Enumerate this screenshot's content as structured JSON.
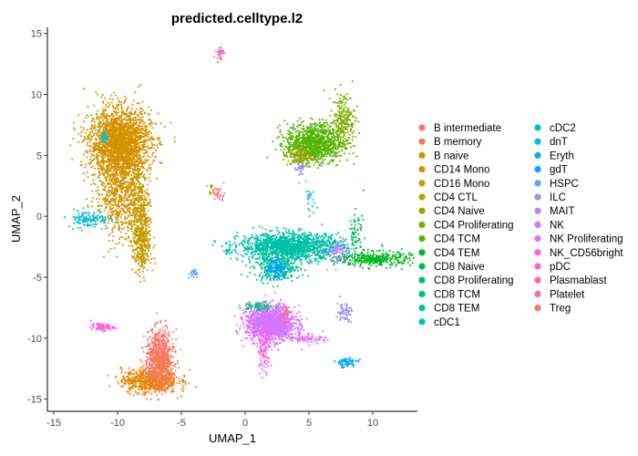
{
  "chart_data": {
    "type": "scatter",
    "title": "predicted.celltype.l2",
    "xlabel": "UMAP_1",
    "ylabel": "UMAP_2",
    "xlim": [
      -15.5,
      13.5
    ],
    "ylim": [
      -16,
      15.5
    ],
    "xticks": [
      -15,
      -10,
      -5,
      0,
      5,
      10
    ],
    "yticks": [
      -15,
      -10,
      -5,
      0,
      5,
      10,
      15
    ],
    "grid": false,
    "legend_position": "right",
    "legend": [
      {
        "label": "B intermediate",
        "color": "#F8766D"
      },
      {
        "label": "B memory",
        "color": "#F07E4E"
      },
      {
        "label": "B naive",
        "color": "#E58700"
      },
      {
        "label": "CD14 Mono",
        "color": "#D39200"
      },
      {
        "label": "CD16 Mono",
        "color": "#C49A00"
      },
      {
        "label": "CD4 CTL",
        "color": "#B2A000"
      },
      {
        "label": "CD4 Naive",
        "color": "#99A800"
      },
      {
        "label": "CD4 Proliferating",
        "color": "#7CAE00"
      },
      {
        "label": "CD4 TCM",
        "color": "#53B400"
      },
      {
        "label": "CD4 TEM",
        "color": "#00B81F"
      },
      {
        "label": "CD8 Naive",
        "color": "#00BB4E"
      },
      {
        "label": "CD8 Proliferating",
        "color": "#00BE70"
      },
      {
        "label": "CD8 TCM",
        "color": "#00C08B"
      },
      {
        "label": "CD8 TEM",
        "color": "#00C1A7"
      },
      {
        "label": "cDC1",
        "color": "#00C0BE"
      },
      {
        "label": "cDC2",
        "color": "#00BDD4"
      },
      {
        "label": "dnT",
        "color": "#00B8E5"
      },
      {
        "label": "Eryth",
        "color": "#00B0F6"
      },
      {
        "label": "gdT",
        "color": "#00A5FF"
      },
      {
        "label": "HSPC",
        "color": "#619CFF"
      },
      {
        "label": "ILC",
        "color": "#9590FF"
      },
      {
        "label": "MAIT",
        "color": "#B983FF"
      },
      {
        "label": "NK",
        "color": "#D575FE"
      },
      {
        "label": "NK Proliferating",
        "color": "#E76BF3"
      },
      {
        "label": "NK_CD56bright",
        "color": "#F564E3"
      },
      {
        "label": "pDC",
        "color": "#FC61D5"
      },
      {
        "label": "Plasmablast",
        "color": "#FF63B6"
      },
      {
        "label": "Platelet",
        "color": "#FF689F"
      },
      {
        "label": "Treg",
        "color": "#F8766D"
      }
    ],
    "clusters": [
      {
        "label": "CD14 Mono",
        "cx": -9.8,
        "cy": 6.0,
        "sx": 1.2,
        "sy": 1.4,
        "n": 2200
      },
      {
        "label": "CD14 Mono",
        "cx": -9.9,
        "cy": 2.2,
        "sx": 0.9,
        "sy": 2.0,
        "n": 700
      },
      {
        "label": "CD16 Mono",
        "cx": -8.1,
        "cy": -2.0,
        "sx": 0.35,
        "sy": 1.4,
        "n": 420
      },
      {
        "label": "CD16 Mono",
        "cx": -8.4,
        "cy": 1.5,
        "sx": 0.45,
        "sy": 1.5,
        "n": 220
      },
      {
        "label": "cDC2",
        "cx": -11.0,
        "cy": 6.5,
        "sx": 0.15,
        "sy": 0.25,
        "n": 35
      },
      {
        "label": "cDC2",
        "cx": -12.3,
        "cy": -0.2,
        "sx": 0.8,
        "sy": 0.35,
        "n": 120
      },
      {
        "label": "Plasmablast",
        "cx": -2.0,
        "cy": 13.4,
        "sx": 0.15,
        "sy": 0.25,
        "n": 30
      },
      {
        "label": "CD4 CTL",
        "cx": -2.6,
        "cy": 2.1,
        "sx": 0.15,
        "sy": 0.25,
        "n": 15
      },
      {
        "label": "Platelet",
        "cx": -2.0,
        "cy": 1.8,
        "sx": 0.2,
        "sy": 0.35,
        "n": 25
      },
      {
        "label": "HSPC",
        "cx": -4.0,
        "cy": -4.7,
        "sx": 0.2,
        "sy": 0.2,
        "n": 20
      },
      {
        "label": "cDC1",
        "cx": -1.3,
        "cy": -2.9,
        "sx": 0.15,
        "sy": 0.15,
        "n": 15
      },
      {
        "label": "pDC",
        "cx": -11.2,
        "cy": -9.1,
        "sx": 0.45,
        "sy": 0.15,
        "n": 80
      },
      {
        "label": "B naive",
        "cx": -7.5,
        "cy": -13.5,
        "sx": 1.1,
        "sy": 0.5,
        "n": 600
      },
      {
        "label": "B intermediate",
        "cx": -6.7,
        "cy": -11.6,
        "sx": 0.55,
        "sy": 1.1,
        "n": 700
      },
      {
        "label": "B memory",
        "cx": -6.5,
        "cy": -12.5,
        "sx": 0.4,
        "sy": 0.8,
        "n": 180
      },
      {
        "label": "CD8 TEM",
        "cx": 3.6,
        "cy": -2.5,
        "sx": 2.0,
        "sy": 0.55,
        "n": 1500
      },
      {
        "label": "CD8 TCM",
        "cx": 2.5,
        "cy": -4.3,
        "sx": 0.9,
        "sy": 0.5,
        "n": 300
      },
      {
        "label": "gdT",
        "cx": 2.3,
        "cy": -4.2,
        "sx": 0.5,
        "sy": 0.5,
        "n": 110
      },
      {
        "label": "CD4 TEM",
        "cx": 10.2,
        "cy": -3.5,
        "sx": 1.4,
        "sy": 0.3,
        "n": 350
      },
      {
        "label": "CD8 Naive",
        "cx": 8.7,
        "cy": -1.3,
        "sx": 0.3,
        "sy": 0.8,
        "n": 60
      },
      {
        "label": "MAIT",
        "cx": 7.2,
        "cy": -3.0,
        "sx": 0.6,
        "sy": 0.5,
        "n": 80
      },
      {
        "label": "CD4 TCM",
        "cx": 5.4,
        "cy": 6.0,
        "sx": 1.1,
        "sy": 0.8,
        "n": 1000
      },
      {
        "label": "CD4 Proliferating",
        "cx": 7.7,
        "cy": 7.8,
        "sx": 0.45,
        "sy": 1.2,
        "n": 250
      },
      {
        "label": "CD4 Naive",
        "cx": 4.3,
        "cy": 4.9,
        "sx": 0.5,
        "sy": 0.4,
        "n": 120
      },
      {
        "label": "ILC",
        "cx": 4.3,
        "cy": 3.9,
        "sx": 0.2,
        "sy": 0.4,
        "n": 30
      },
      {
        "label": "dnT",
        "cx": 5.0,
        "cy": 1.3,
        "sx": 0.2,
        "sy": 0.6,
        "n": 20
      },
      {
        "label": "NK",
        "cx": 2.0,
        "cy": -8.8,
        "sx": 0.95,
        "sy": 0.7,
        "n": 1500
      },
      {
        "label": "NK_CD56bright",
        "cx": 1.5,
        "cy": -10.8,
        "sx": 0.25,
        "sy": 0.9,
        "n": 120
      },
      {
        "label": "NK Proliferating",
        "cx": 4.9,
        "cy": -10.0,
        "sx": 0.7,
        "sy": 0.2,
        "n": 70
      },
      {
        "label": "CD8 Proliferating",
        "cx": 1.0,
        "cy": -7.4,
        "sx": 0.6,
        "sy": 0.2,
        "n": 60
      },
      {
        "label": "ILC",
        "cx": 7.8,
        "cy": -7.8,
        "sx": 0.3,
        "sy": 0.4,
        "n": 60
      },
      {
        "label": "Eryth",
        "cx": 7.9,
        "cy": -12.0,
        "sx": 0.45,
        "sy": 0.2,
        "n": 70
      },
      {
        "label": "Treg",
        "cx": 3.0,
        "cy": -8.0,
        "sx": 0.3,
        "sy": 0.3,
        "n": 25
      }
    ]
  }
}
